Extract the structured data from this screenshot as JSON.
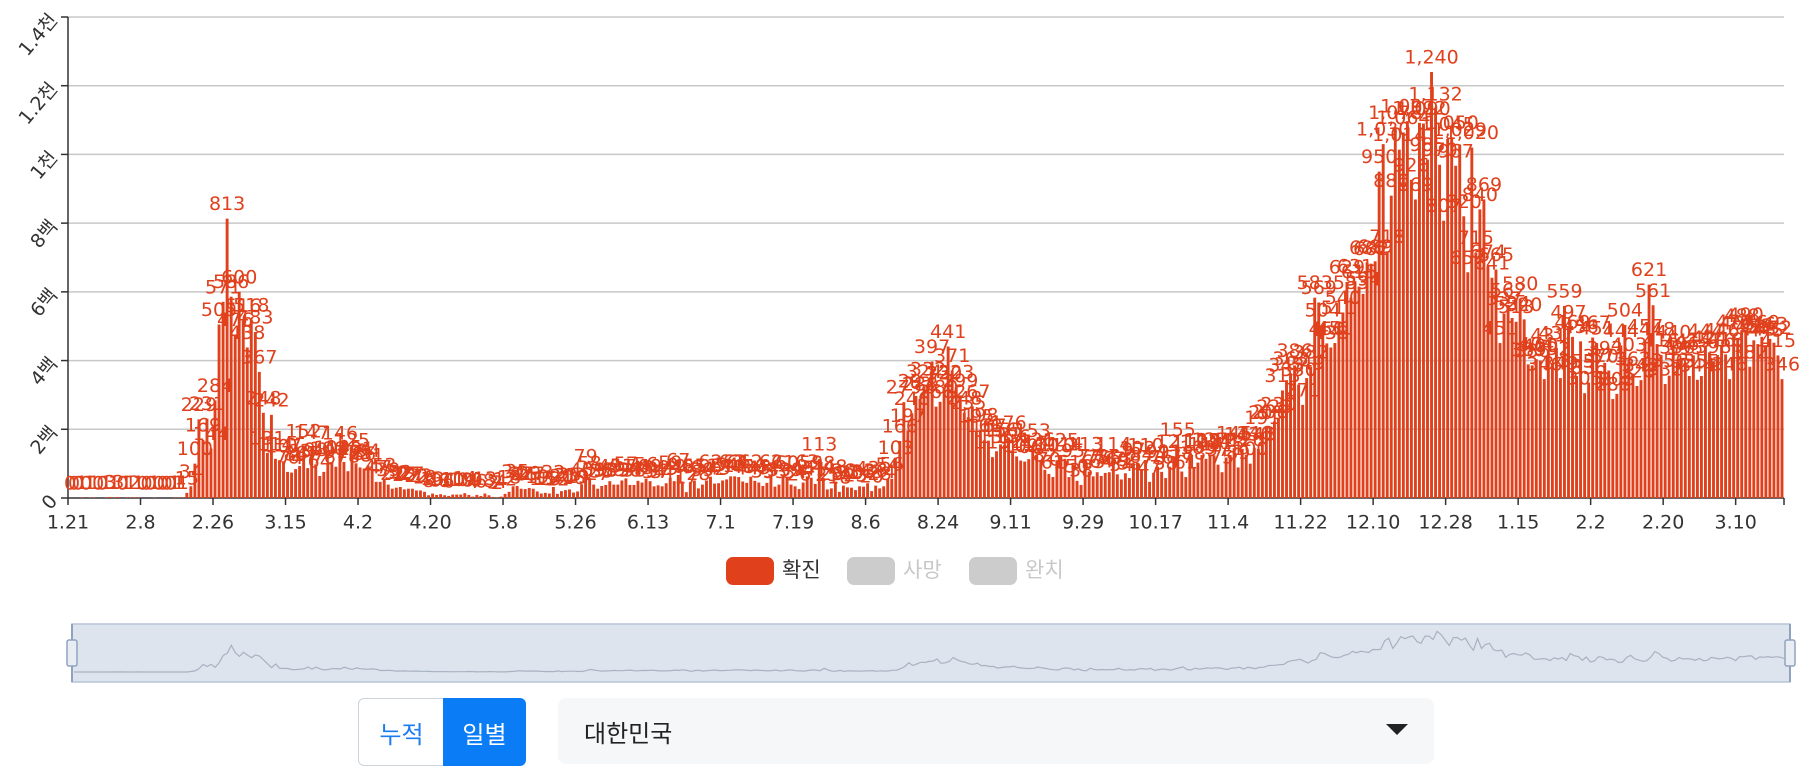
{
  "chart_data": {
    "type": "bar",
    "categories": [
      "1.21",
      null,
      null,
      null,
      null,
      null,
      null,
      null,
      null,
      null,
      null,
      null,
      null,
      null,
      null,
      null,
      null,
      null,
      "2.8",
      null,
      null,
      null,
      null,
      null,
      null,
      null,
      null,
      null,
      null,
      null,
      null,
      null,
      null,
      null,
      null,
      null,
      "2.26",
      null,
      null,
      null,
      null,
      null,
      null,
      null,
      null,
      null,
      null,
      null,
      null,
      null,
      null,
      null,
      null,
      null,
      "3.15",
      null,
      null,
      null,
      null,
      null,
      null,
      null,
      null,
      null,
      null,
      null,
      null,
      null,
      null,
      null,
      null,
      null,
      "4.2",
      null,
      null,
      null,
      null,
      null,
      null,
      null,
      null,
      null,
      null,
      null,
      null,
      null,
      null,
      null,
      null,
      null,
      "4.20",
      null,
      null,
      null,
      null,
      null,
      null,
      null,
      null,
      null,
      null,
      null,
      null,
      null,
      null,
      null,
      null,
      null,
      "5.8",
      null,
      null,
      null,
      null,
      null,
      null,
      null,
      null,
      null,
      null,
      null,
      null,
      null,
      null,
      null,
      null,
      null,
      "5.26",
      null,
      null,
      null,
      null,
      null,
      null,
      null,
      null,
      null,
      null,
      null,
      null,
      null,
      null,
      null,
      null,
      null,
      "6.13",
      null,
      null,
      null,
      null,
      null,
      null,
      null,
      null,
      null,
      null,
      null,
      null,
      null,
      null,
      null,
      null,
      null,
      "7.1",
      null,
      null,
      null,
      null,
      null,
      null,
      null,
      null,
      null,
      null,
      null,
      null,
      null,
      null,
      null,
      null,
      null,
      "7.19",
      null,
      null,
      null,
      null,
      null,
      null,
      null,
      null,
      null,
      null,
      null,
      null,
      null,
      null,
      null,
      null,
      null,
      "8.6",
      null,
      null,
      null,
      null,
      null,
      null,
      null,
      null,
      null,
      null,
      null,
      null,
      null,
      null,
      null,
      null,
      null,
      "8.24",
      null,
      null,
      null,
      null,
      null,
      null,
      null,
      null,
      null,
      null,
      null,
      null,
      null,
      null,
      null,
      null,
      null,
      "9.11",
      null,
      null,
      null,
      null,
      null,
      null,
      null,
      null,
      null,
      null,
      null,
      null,
      null,
      null,
      null,
      null,
      null,
      "9.29",
      null,
      null,
      null,
      null,
      null,
      null,
      null,
      null,
      null,
      null,
      null,
      null,
      null,
      null,
      null,
      null,
      null,
      "10.17",
      null,
      null,
      null,
      null,
      null,
      null,
      null,
      null,
      null,
      null,
      null,
      null,
      null,
      null,
      null,
      null,
      null,
      "11.4",
      null,
      null,
      null,
      null,
      null,
      null,
      null,
      null,
      null,
      null,
      null,
      null,
      null,
      null,
      null,
      null,
      null,
      "11.22",
      null,
      null,
      null,
      null,
      null,
      null,
      null,
      null,
      null,
      null,
      null,
      null,
      null,
      null,
      null,
      null,
      null,
      "12.10",
      null,
      null,
      null,
      null,
      null,
      null,
      null,
      null,
      null,
      null,
      null,
      null,
      null,
      null,
      null,
      null,
      null,
      "12.28",
      null,
      null,
      null,
      null,
      null,
      null,
      null,
      null,
      null,
      null,
      null,
      null,
      null,
      null,
      null,
      null,
      null,
      "1.15",
      null,
      null,
      null,
      null,
      null,
      null,
      null,
      null,
      null,
      null,
      null,
      null,
      null,
      null,
      null,
      null,
      null,
      "2.2",
      null,
      null,
      null,
      null,
      null,
      null,
      null,
      null,
      null,
      null,
      null,
      null,
      null,
      null,
      null,
      null,
      null,
      "2.20",
      null,
      null,
      null,
      null,
      null,
      null,
      null,
      null,
      null,
      null,
      null,
      null,
      null,
      null,
      null,
      null,
      null,
      "3.10",
      null,
      null,
      null,
      null,
      null,
      null,
      null,
      null,
      null,
      null,
      null
    ],
    "series": [
      {
        "name": "확진",
        "color": "#e0411c",
        "values": [
          0,
          0,
          0,
          1,
          0,
          1,
          1,
          0,
          0,
          1,
          3,
          1,
          3,
          0,
          1,
          1,
          2,
          1,
          0,
          0,
          0,
          1,
          0,
          0,
          0,
          0,
          1,
          1,
          1,
          15,
          34,
          100,
          229,
          169,
          231,
          144,
          284,
          505,
          571,
          813,
          586,
          476,
          600,
          516,
          438,
          518,
          483,
          367,
          248,
          131,
          242,
          114,
          110,
          107,
          76,
          74,
          84,
          93,
          152,
          87,
          147,
          98,
          64,
          76,
          100,
          104,
          91,
          146,
          105,
          78,
          125,
          101,
          89,
          86,
          94,
          81,
          47,
          47,
          53,
          39,
          27,
          30,
          32,
          25,
          27,
          27,
          22,
          22,
          18,
          8,
          13,
          9,
          11,
          8,
          6,
          10,
          10,
          10,
          14,
          9,
          4,
          9,
          6,
          13,
          8,
          3,
          2,
          4,
          12,
          18,
          34,
          35,
          27,
          26,
          29,
          27,
          19,
          13,
          15,
          13,
          32,
          12,
          20,
          23,
          25,
          16,
          19,
          40,
          79,
          58,
          39,
          27,
          35,
          38,
          49,
          39,
          39,
          51,
          57,
          38,
          38,
          50,
          45,
          56,
          49,
          34,
          37,
          34,
          43,
          59,
          49,
          67,
          48,
          17,
          46,
          51,
          28,
          39,
          51,
          62,
          42,
          43,
          51,
          54,
          63,
          63,
          61,
          48,
          44,
          62,
          50,
          45,
          35,
          44,
          62,
          33,
          39,
          61,
          60,
          39,
          34,
          26,
          45,
          63,
          59,
          41,
          113,
          58,
          25,
          28,
          48,
          18,
          36,
          31,
          30,
          23,
          34,
          33,
          43,
          20,
          36,
          28,
          34,
          54,
          56,
          103,
          166,
          279,
          197,
          246,
          297,
          288,
          324,
          332,
          397,
          266,
          280,
          320,
          441,
          371,
          323,
          299,
          248,
          235,
          267,
          195,
          198,
          168,
          167,
          119,
          136,
          156,
          155,
          176,
          136,
          121,
          109,
          106,
          113,
          153,
          126,
          110,
          82,
          70,
          61,
          110,
          125,
          114,
          61,
          95,
          50,
          38,
          113,
          77,
          63,
          75,
          64,
          73,
          75,
          114,
          69,
          54,
          72,
          58,
          97,
          102,
          84,
          110,
          47,
          73,
          91,
          76,
          58,
          91,
          121,
          155,
          77,
          61,
          119,
          88,
          103,
          125,
          114,
          127,
          124,
          97,
          75,
          118,
          125,
          145,
          89,
          143,
          126,
          100,
          146,
          143,
          191,
          205,
          208,
          223,
          230,
          313,
          343,
          363,
          386,
          330,
          271,
          349,
          382,
          583,
          569,
          504,
          450,
          438,
          451,
          511,
          540,
          629,
          583,
          631,
          615,
          594,
          686,
          682,
          689,
          950,
          1030,
          718,
          880,
          1078,
          1014,
          1064,
          1097,
          926,
          869,
          1092,
          1090,
          985,
          1240,
          1132,
          970,
          807,
          1045,
          1050,
          967,
          1029,
          820,
          657,
          1020,
          715,
          840,
          869,
          674,
          641,
          665,
          451,
          537,
          562,
          524,
          513,
          580,
          520,
          389,
          386,
          404,
          400,
          346,
          431,
          392,
          437,
          349,
          559,
          497,
          469,
          355,
          456,
          305,
          336,
          467,
          451,
          370,
          393,
          371,
          288,
          303,
          444,
          504,
          403,
          362,
          326,
          343,
          457,
          621,
          561,
          448,
          416,
          332,
          356,
          440,
          396,
          406,
          395,
          355,
          415,
          344,
          355,
          444,
          424,
          398,
          416,
          446,
          418,
          346,
          470,
          465,
          488,
          490,
          382,
          459,
          448,
          469,
          445,
          463,
          452,
          415,
          346
        ],
        "value_labels": [
          "0",
          "0",
          "0",
          "1",
          "0",
          "1",
          "1",
          "0",
          "0",
          "1",
          "3",
          "1",
          "3",
          "0",
          "1",
          "1",
          "2",
          "1",
          "0",
          "0",
          "0",
          "1",
          "0",
          "0",
          "0",
          "0",
          "1",
          "1",
          "1",
          "15",
          "34",
          "100",
          "229",
          "169",
          "231",
          "144",
          "284",
          "505",
          "571",
          "813",
          "586",
          "476",
          "600",
          "516",
          "438",
          "518",
          "483",
          "367",
          "248",
          "131",
          "242",
          "114",
          "110",
          "107",
          "76",
          "74",
          "84",
          "93",
          "152",
          "87",
          "147",
          "98",
          "64",
          "76",
          "100",
          "104",
          "91",
          "146",
          "105",
          "78",
          "125",
          "101",
          "89",
          "86",
          "94",
          "81",
          "47",
          "47",
          "53",
          "39",
          "27",
          "30",
          "32",
          "25",
          "27",
          "27",
          "22",
          "22",
          "18",
          "8",
          "13",
          "9",
          "11",
          "8",
          "6",
          "10",
          "10",
          "10",
          "14",
          "9",
          "4",
          "9",
          "6",
          "13",
          "8",
          "3",
          "2",
          "4",
          "12",
          "18",
          "34",
          "35",
          "27",
          "26",
          "29",
          "27",
          "19",
          "13",
          "15",
          "13",
          "32",
          "12",
          "20",
          "23",
          "25",
          "16",
          "19",
          "40",
          "79",
          "58",
          "39",
          "27",
          "35",
          "38",
          "49",
          "39",
          "39",
          "51",
          "57",
          "38",
          "38",
          "50",
          "45",
          "56",
          "49",
          "34",
          "37",
          "34",
          "43",
          "59",
          "49",
          "67",
          "48",
          "17",
          "46",
          "51",
          "28",
          "39",
          "51",
          "62",
          "42",
          "43",
          "51",
          "54",
          "63",
          "63",
          "61",
          "48",
          "44",
          "62",
          "50",
          "45",
          "35",
          "44",
          "62",
          "33",
          "39",
          "61",
          "60",
          "39",
          "34",
          "26",
          "45",
          "63",
          "59",
          "41",
          "113",
          "58",
          "25",
          "28",
          "48",
          "18",
          "36",
          "31",
          "30",
          "23",
          "34",
          "33",
          "43",
          "20",
          "36",
          "28",
          "34",
          "54",
          "56",
          "103",
          "166",
          "279",
          "197",
          "246",
          "297",
          "288",
          "324",
          "332",
          "397",
          "266",
          "280",
          "320",
          "441",
          "371",
          "323",
          "299",
          "248",
          "235",
          "267",
          "195",
          "198",
          "168",
          "167",
          "119",
          "136",
          "156",
          "155",
          "176",
          "136",
          "121",
          "109",
          "106",
          "113",
          "153",
          "126",
          "110",
          "82",
          "70",
          "61",
          "110",
          "125",
          "114",
          "61",
          "95",
          "50",
          "38",
          "113",
          "77",
          "63",
          "75",
          "64",
          "73",
          "75",
          "114",
          "69",
          "54",
          "72",
          "58",
          "97",
          "102",
          "84",
          "110",
          "47",
          "73",
          "91",
          "76",
          "58",
          "91",
          "121",
          "155",
          "77",
          "61",
          "119",
          "88",
          "103",
          "125",
          "114",
          "127",
          "124",
          "97",
          "75",
          "118",
          "125",
          "145",
          "89",
          "143",
          "126",
          "100",
          "146",
          "143",
          "191",
          "205",
          "208",
          "223",
          "230",
          "313",
          "343",
          "363",
          "386",
          "330",
          "271",
          "349",
          "382",
          "583",
          "569",
          "504",
          "450",
          "438",
          "451",
          "511",
          "540",
          "629",
          "583",
          "631",
          "615",
          "594",
          "686",
          "682",
          "689",
          "950",
          "1,030",
          "718",
          "880",
          "1,078",
          "1,014",
          "1,064",
          "1,097",
          "926",
          "869",
          "1,092",
          "1,090",
          "985",
          "1,240",
          "1,132",
          "970",
          "807",
          "1,045",
          "1,050",
          "967",
          "1,029",
          "820",
          "657",
          "1,020",
          "715",
          "840",
          "869",
          "674",
          "641",
          "665",
          "451",
          "537",
          "562",
          "524",
          "513",
          "580",
          "520",
          "389",
          "386",
          "404",
          "400",
          "346",
          "431",
          "392",
          "437",
          "349",
          "559",
          "497",
          "469",
          "355",
          "456",
          "305",
          "336",
          "467",
          "451",
          "370",
          "393",
          "371",
          "288",
          "303",
          "444",
          "504",
          "403",
          "362",
          "326",
          "343",
          "457",
          "621",
          "561",
          "448",
          "416",
          "332",
          "356",
          "440",
          "396",
          "406",
          "395",
          "355",
          "415",
          "344",
          "355",
          "444",
          "424",
          "398",
          "416",
          "446",
          "418",
          "346",
          "470",
          "465",
          "488",
          "490",
          "382",
          "459",
          "448",
          "469",
          "445",
          "463",
          "452",
          "415",
          "346"
        ]
      },
      {
        "name": "사망",
        "color": "#cccccc",
        "visible": false
      },
      {
        "name": "완치",
        "color": "#cccccc",
        "visible": false
      }
    ],
    "ylim": [
      0,
      1400
    ],
    "yticks": [
      0,
      {
        "value": 200,
        "label": "2백"
      },
      {
        "value": 400,
        "label": "4백"
      },
      {
        "value": 600,
        "label": "6백"
      },
      {
        "value": 800,
        "label": "8백"
      },
      {
        "value": 1000,
        "label": "1천"
      },
      {
        "value": 1200,
        "label": "1.2천"
      },
      {
        "value": 1400,
        "label": "1.4천"
      }
    ],
    "grid": true,
    "legend": "bottom",
    "brush": true
  },
  "controls": {
    "toggle": [
      "누적",
      "일별"
    ],
    "selected": 1,
    "region": "대한민국"
  }
}
